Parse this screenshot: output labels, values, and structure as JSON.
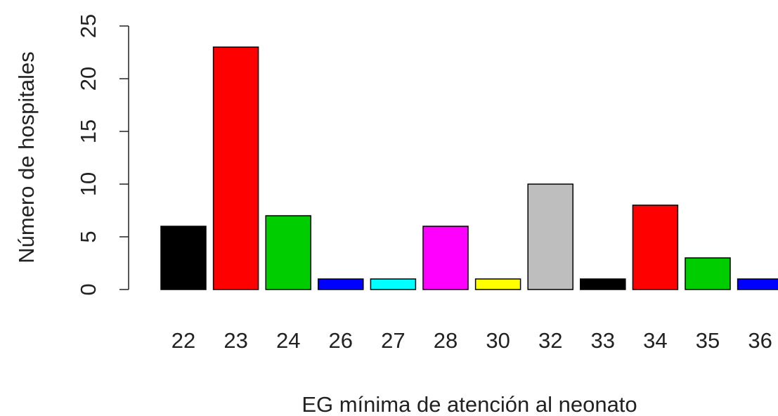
{
  "chart_data": {
    "type": "bar",
    "x_label": "EG mínima de atención al neonato",
    "y_label": "Número de hospitales",
    "categories": [
      "22",
      "23",
      "24",
      "26",
      "27",
      "28",
      "30",
      "32",
      "33",
      "34",
      "35",
      "36"
    ],
    "values": [
      6,
      23,
      7,
      1,
      1,
      6,
      1,
      10,
      1,
      8,
      3,
      1
    ],
    "colors": [
      "#000000",
      "#ff0000",
      "#00cd00",
      "#0000ff",
      "#00ffff",
      "#ff00ff",
      "#ffff00",
      "#bebebe",
      "#000000",
      "#ff0000",
      "#00cd00",
      "#0000ff"
    ],
    "ylim": [
      0,
      25
    ],
    "yticks": [
      0,
      5,
      10,
      15,
      20,
      25
    ],
    "grid": false
  }
}
